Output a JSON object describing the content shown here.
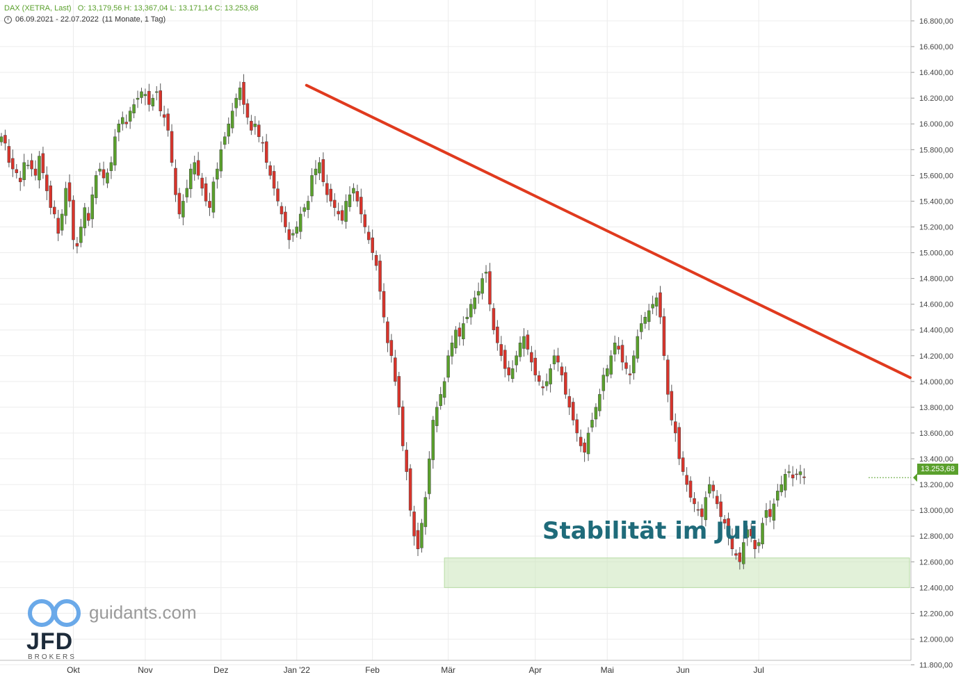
{
  "header": {
    "symbol": "DAX (XETRA, Last)",
    "ohlc": "O: 13,179,56  H: 13,367,04  L: 13.171,14  C: 13.253,68",
    "range": "06.09.2021 - 22.07.2022",
    "period": "(11 Monate, 1 Tag)"
  },
  "brand": {
    "site": "guidants.com",
    "logo": "JFD",
    "sub": "BROKERS"
  },
  "current_price": "13.253,68",
  "colors": {
    "up": "#5aa02c",
    "down": "#d9342b",
    "trend": "#e03a1e",
    "zone": "#cfe8c0",
    "annotation": "#1f6b7a"
  },
  "chart_data": {
    "type": "candlestick",
    "ylim": [
      11700,
      16950
    ],
    "y_ticks": [
      11800,
      12000,
      12200,
      12400,
      12600,
      12800,
      13000,
      13200,
      13400,
      13600,
      13800,
      14000,
      14200,
      14400,
      14600,
      14800,
      15000,
      15200,
      15400,
      15600,
      15800,
      16000,
      16200,
      16400,
      16600,
      16800
    ],
    "y_tick_labels": [
      "11.800,00",
      "12.000,00",
      "12.200,00",
      "12.400,00",
      "12.600,00",
      "12.800,00",
      "13.000,00",
      "13.200,00",
      "13.400,00",
      "13.600,00",
      "13.800,00",
      "14.000,00",
      "14.200,00",
      "14.400,00",
      "14.600,00",
      "14.800,00",
      "15.000,00",
      "15.200,00",
      "15.400,00",
      "15.600,00",
      "15.800,00",
      "16.000,00",
      "16.200,00",
      "16.400,00",
      "16.600,00",
      "16.800,00"
    ],
    "months": [
      "Okt",
      "Nov",
      "Dez",
      "Jan '22",
      "Feb",
      "Mär",
      "Apr",
      "Mai",
      "Jun",
      "Jul"
    ],
    "month_session_index": [
      19,
      38,
      58,
      78,
      98,
      118,
      141,
      160,
      180,
      200
    ],
    "sessions": 230,
    "closes": [
      15900,
      15850,
      15700,
      15650,
      15620,
      15550,
      15700,
      15680,
      15650,
      15600,
      15750,
      15620,
      15480,
      15350,
      15300,
      15150,
      15300,
      15500,
      15400,
      15100,
      15050,
      15200,
      15350,
      15250,
      15450,
      15600,
      15650,
      15580,
      15620,
      15700,
      15900,
      16000,
      16050,
      16000,
      16100,
      16150,
      16200,
      16250,
      16230,
      16150,
      16200,
      16250,
      16100,
      16050,
      15950,
      15700,
      15450,
      15300,
      15400,
      15500,
      15650,
      15700,
      15600,
      15500,
      15400,
      15350,
      15550,
      15650,
      15800,
      15900,
      16000,
      16100,
      16200,
      16280,
      16150,
      16050,
      15950,
      16000,
      15900,
      15850,
      15700,
      15600,
      15500,
      15400,
      15300,
      15200,
      15100,
      15150,
      15200,
      15300,
      15350,
      15400,
      15600,
      15650,
      15700,
      15550,
      15450,
      15400,
      15350,
      15300,
      15250,
      15400,
      15450,
      15500,
      15400,
      15300,
      15200,
      15100,
      15000,
      14900,
      14700,
      14500,
      14300,
      14200,
      14000,
      13800,
      13500,
      13300,
      13000,
      12800,
      12700,
      12900,
      13100,
      13400,
      13700,
      13800,
      13900,
      14000,
      14200,
      14300,
      14400,
      14350,
      14450,
      14500,
      14600,
      14650,
      14700,
      14800,
      14850,
      14600,
      14400,
      14300,
      14200,
      14100,
      14050,
      14100,
      14200,
      14300,
      14350,
      14250,
      14150,
      14050,
      14000,
      13950,
      14000,
      14100,
      14200,
      14150,
      14050,
      13900,
      13800,
      13700,
      13600,
      13500,
      13450,
      13600,
      13700,
      13800,
      13900,
      14050,
      14100,
      14200,
      14300,
      14250,
      14150,
      14100,
      14050,
      14200,
      14350,
      14450,
      14500,
      14550,
      14600,
      14650,
      14500,
      14200,
      13900,
      13700,
      13600,
      13400,
      13300,
      13200,
      13100,
      13050,
      13000,
      12950,
      13100,
      13200,
      13150,
      13050,
      12950,
      12900,
      12800,
      12700,
      12650,
      12600,
      12750,
      12850,
      12800,
      12700,
      12750,
      12900,
      13000,
      12950,
      13050,
      13150,
      13200,
      13280,
      13300,
      13250,
      13280,
      13300,
      13253
    ],
    "trendline": {
      "from": [
        "03.01.2022",
        16300
      ],
      "to": [
        "22.07.2022",
        14030
      ]
    },
    "support_zone": [
      12400,
      12630
    ],
    "annotation": "Stabilität im Juli"
  }
}
